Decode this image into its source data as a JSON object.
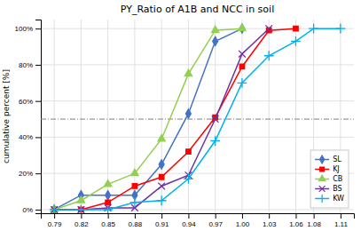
{
  "chart_data": {
    "type": "line",
    "title": "PY_Ratio of A1B and NCC in soil",
    "ylabel": "cumulative percent [%]",
    "xlim": [
      0.775,
      1.125
    ],
    "xticks": [
      0.79,
      0.82,
      0.85,
      0.88,
      0.91,
      0.94,
      0.97,
      {
        "value": 1.0,
        "label": "1.00"
      },
      1.03,
      1.06,
      1.08,
      1.11
    ],
    "ylim": [
      -0.02,
      1.05
    ],
    "yticks": [
      {
        "value": 0.0,
        "label": "0%"
      },
      {
        "value": 0.2,
        "label": "20%"
      },
      {
        "value": 0.4,
        "label": "40%"
      },
      {
        "value": 0.6,
        "label": "60%"
      },
      {
        "value": 0.8,
        "label": "80%"
      },
      {
        "value": 1.0,
        "label": "100%"
      }
    ],
    "hline": 0.5,
    "grid": true,
    "legend": "lower right",
    "series": [
      {
        "name": "SL",
        "color": "#4472C4",
        "marker": "diamond",
        "x": [
          0.79,
          0.82,
          0.85,
          0.88,
          0.91,
          0.94,
          0.97,
          1.0
        ],
        "values": [
          0.0,
          0.08,
          0.08,
          0.08,
          0.25,
          0.53,
          0.93,
          1.0
        ]
      },
      {
        "name": "KJ",
        "color": "#FF0000",
        "marker": "square",
        "x": [
          0.79,
          0.82,
          0.85,
          0.88,
          0.91,
          0.94,
          0.97,
          1.0,
          1.03,
          1.06
        ],
        "values": [
          0.0,
          0.0,
          0.04,
          0.13,
          0.18,
          0.32,
          0.51,
          0.79,
          0.99,
          1.0
        ]
      },
      {
        "name": "CB",
        "color": "#92D050",
        "marker": "triangle",
        "x": [
          0.79,
          0.82,
          0.85,
          0.88,
          0.91,
          0.94,
          0.97,
          1.0
        ],
        "values": [
          0.0,
          0.05,
          0.14,
          0.2,
          0.39,
          0.75,
          0.99,
          1.0
        ]
      },
      {
        "name": "BS",
        "color": "#7030A0",
        "marker": "x",
        "x": [
          0.79,
          0.82,
          0.85,
          0.88,
          0.91,
          0.94,
          0.97,
          1.0,
          1.03
        ],
        "values": [
          0.0,
          0.0,
          0.01,
          0.01,
          0.13,
          0.19,
          0.5,
          0.86,
          1.0
        ]
      },
      {
        "name": "KW",
        "color": "#00B0F0",
        "marker": "plus",
        "x": [
          0.79,
          0.82,
          0.85,
          0.88,
          0.91,
          0.94,
          0.97,
          1.0,
          1.03,
          1.06,
          1.08,
          1.11
        ],
        "values": [
          0.0,
          0.0,
          0.0,
          0.04,
          0.05,
          0.17,
          0.38,
          0.7,
          0.85,
          0.93,
          1.0,
          1.0
        ]
      }
    ]
  }
}
